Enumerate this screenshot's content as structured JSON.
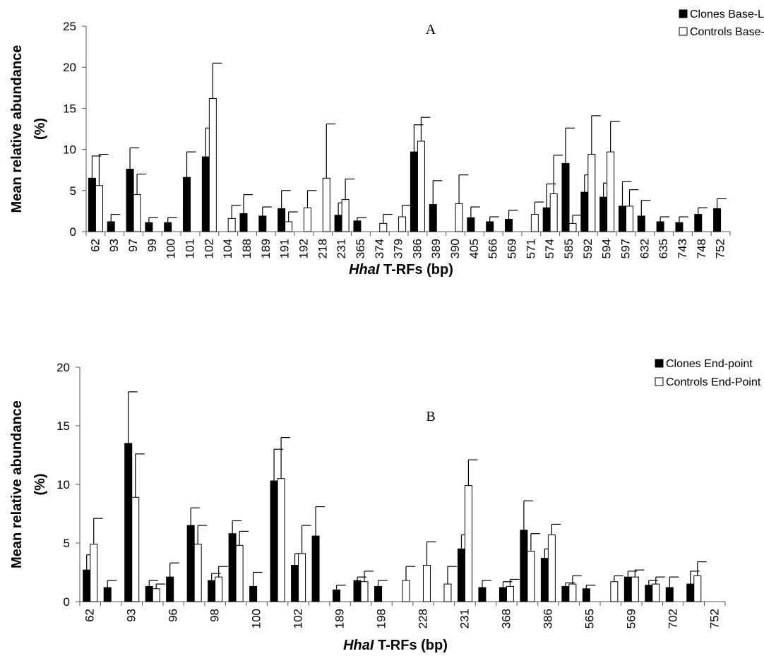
{
  "chart_data": [
    {
      "type": "bar",
      "panel_label": "A",
      "ylabel_line1": "Mean  relative abundance",
      "ylabel_line2": "(%)",
      "xlabel_italic": "HhaI",
      "xlabel_rest": " T-RFs (bp)",
      "ylim": [
        0,
        25
      ],
      "yticks": [
        0,
        5,
        10,
        15,
        20,
        25
      ],
      "categories": [
        "62",
        "93",
        "97",
        "99",
        "100",
        "101",
        "102",
        "104",
        "188",
        "189",
        "191",
        "192",
        "218",
        "231",
        "365",
        "374",
        "379",
        "386",
        "389",
        "390",
        "405",
        "566",
        "569",
        "571",
        "574",
        "585",
        "592",
        "594",
        "597",
        "632",
        "635",
        "743",
        "748",
        "752"
      ],
      "series": [
        {
          "name": "Clones Base-Line",
          "fill": "#000000",
          "values": [
            6.5,
            1.2,
            7.6,
            1.1,
            1.1,
            6.6,
            9.1,
            null,
            2.2,
            1.9,
            2.8,
            null,
            null,
            2.0,
            1.3,
            null,
            null,
            9.7,
            3.3,
            null,
            1.7,
            1.2,
            1.5,
            null,
            2.9,
            8.3,
            4.8,
            4.2,
            3.1,
            1.9,
            1.2,
            1.1,
            2.1,
            2.8
          ],
          "errors": [
            2.7,
            0.9,
            2.6,
            0.6,
            0.6,
            3.1,
            3.5,
            null,
            2.3,
            1.1,
            2.2,
            null,
            null,
            1.5,
            0.4,
            null,
            null,
            3.3,
            2.9,
            null,
            1.3,
            0.6,
            1.1,
            null,
            2.9,
            4.3,
            2.1,
            1.7,
            3.0,
            1.9,
            0.6,
            0.7,
            0.8,
            1.2
          ]
        },
        {
          "name": "Controls Base-Line",
          "fill": "#ffffff",
          "values": [
            5.6,
            null,
            4.5,
            null,
            null,
            null,
            16.2,
            1.6,
            null,
            null,
            1.2,
            2.9,
            6.5,
            3.9,
            null,
            1.0,
            1.8,
            11.0,
            null,
            3.4,
            null,
            null,
            null,
            2.1,
            4.6,
            1.0,
            9.4,
            9.7,
            3.1,
            null,
            null,
            null,
            null,
            null
          ],
          "errors": [
            3.8,
            null,
            2.5,
            null,
            null,
            null,
            4.3,
            1.6,
            null,
            null,
            1.2,
            2.1,
            6.6,
            2.5,
            null,
            1.1,
            1.4,
            2.9,
            null,
            3.5,
            null,
            null,
            null,
            1.5,
            4.7,
            1.0,
            4.7,
            3.7,
            2.0,
            null,
            null,
            null,
            null,
            null
          ]
        }
      ]
    },
    {
      "type": "bar",
      "panel_label": "B",
      "ylabel_line1": "Mean relative abundance",
      "ylabel_line2": "(%)",
      "xlabel_italic": "HhaI",
      "xlabel_rest": " T-RFs (bp)",
      "ylim": [
        0,
        20
      ],
      "yticks": [
        0,
        5,
        10,
        15,
        20
      ],
      "categories": [
        "62",
        "",
        "93",
        "",
        "96",
        "",
        "98",
        "",
        "100",
        "",
        "102",
        "",
        "189",
        "",
        "198",
        "",
        "228",
        "",
        "231",
        "",
        "368",
        "",
        "386",
        "",
        "565",
        "",
        "569",
        "",
        "702",
        "",
        "752"
      ],
      "series": [
        {
          "name": "Clones End-point",
          "fill": "#000000",
          "values": [
            2.7,
            1.2,
            13.5,
            1.3,
            2.1,
            6.5,
            1.8,
            5.8,
            1.3,
            10.3,
            3.1,
            5.6,
            1.0,
            1.8,
            1.3,
            null,
            null,
            null,
            4.5,
            1.2,
            1.2,
            6.1,
            3.7,
            1.3,
            1.1,
            null,
            2.1,
            1.4,
            1.2,
            1.5,
            null
          ],
          "errors": [
            1.3,
            0.6,
            4.4,
            0.5,
            1.2,
            1.5,
            0.6,
            1.1,
            1.2,
            2.7,
            1.0,
            2.5,
            0.4,
            0.3,
            0.5,
            null,
            null,
            null,
            1.2,
            0.6,
            0.5,
            2.5,
            0.8,
            0.3,
            0.3,
            null,
            0.5,
            0.4,
            0.9,
            1.1,
            null
          ]
        },
        {
          "name": "Controls End-Point",
          "fill": "#ffffff",
          "values": [
            4.9,
            null,
            8.9,
            1.1,
            null,
            4.9,
            2.1,
            4.8,
            null,
            10.5,
            4.1,
            null,
            null,
            1.7,
            null,
            1.8,
            3.1,
            1.5,
            9.9,
            null,
            1.3,
            4.3,
            5.7,
            1.5,
            null,
            1.7,
            2.1,
            1.5,
            null,
            2.2,
            null
          ],
          "errors": [
            2.2,
            null,
            3.7,
            0.4,
            null,
            1.6,
            0.9,
            1.2,
            null,
            3.5,
            2.4,
            null,
            null,
            0.9,
            null,
            1.2,
            2.0,
            1.5,
            2.2,
            null,
            0.6,
            1.5,
            0.9,
            0.7,
            null,
            0.5,
            0.6,
            0.6,
            null,
            1.2,
            null
          ]
        }
      ]
    }
  ]
}
